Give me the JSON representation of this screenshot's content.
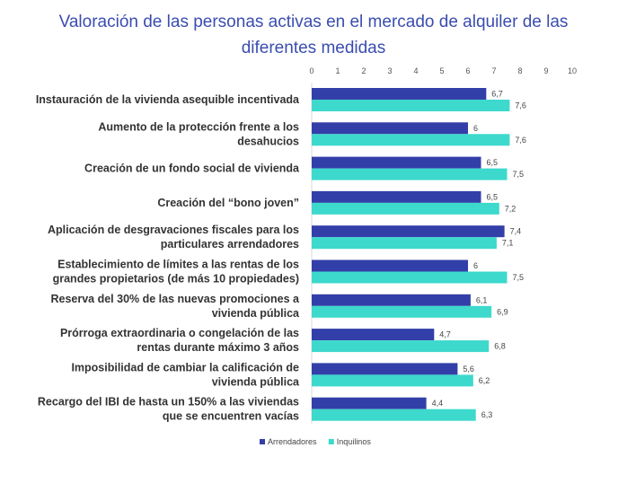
{
  "chart_data": {
    "type": "bar",
    "orientation": "horizontal",
    "title": "Valoración de las personas activas en el mercado de alquiler de las diferentes medidas",
    "title_lines": [
      "Valoración de las personas activas en el mercado de alquiler de las",
      "diferentes medidas"
    ],
    "categories": [
      [
        "Instauración de la vivienda asequible incentivada"
      ],
      [
        "Aumento de la protección frente a los",
        "desahucios"
      ],
      [
        "Creación de un fondo social de vivienda"
      ],
      [
        "Creación del “bono joven”"
      ],
      [
        "Aplicación de desgravaciones fiscales para los",
        "particulares arrendadores"
      ],
      [
        "Establecimiento de límites a las rentas de los",
        "grandes propietarios (de más 10 propiedades)"
      ],
      [
        "Reserva del 30% de las nuevas promociones a",
        "vivienda pública"
      ],
      [
        "Prórroga extraordinaria o congelación de las",
        "rentas durante máximo 3 años"
      ],
      [
        "Imposibilidad de cambiar la calificación de",
        "vivienda pública"
      ],
      [
        "Recargo del IBI de hasta un 150% a las viviendas",
        "que se encuentren vacías"
      ]
    ],
    "series": [
      {
        "name": "Arrendadores",
        "color": "#333fa8",
        "values": [
          6.7,
          6,
          6.5,
          6.5,
          7.4,
          6,
          6.1,
          4.7,
          5.6,
          4.4
        ],
        "labels": [
          "6,7",
          "6",
          "6,5",
          "6,5",
          "7,4",
          "6",
          "6,1",
          "4,7",
          "5,6",
          "4,4"
        ]
      },
      {
        "name": "Inquilinos",
        "color": "#3dd9cc",
        "values": [
          7.6,
          7.6,
          7.5,
          7.2,
          7.1,
          7.5,
          6.9,
          6.8,
          6.2,
          6.3
        ],
        "labels": [
          "7,6",
          "7,6",
          "7,5",
          "7,2",
          "7,1",
          "7,5",
          "6,9",
          "6,8",
          "6,2",
          "6,3"
        ]
      }
    ],
    "xlim": [
      0,
      10
    ],
    "xticks": [
      "0",
      "1",
      "2",
      "3",
      "4",
      "5",
      "6",
      "7",
      "8",
      "9",
      "10"
    ],
    "xaxis_position": "top",
    "grid": false,
    "legend_placement": "bottom"
  }
}
